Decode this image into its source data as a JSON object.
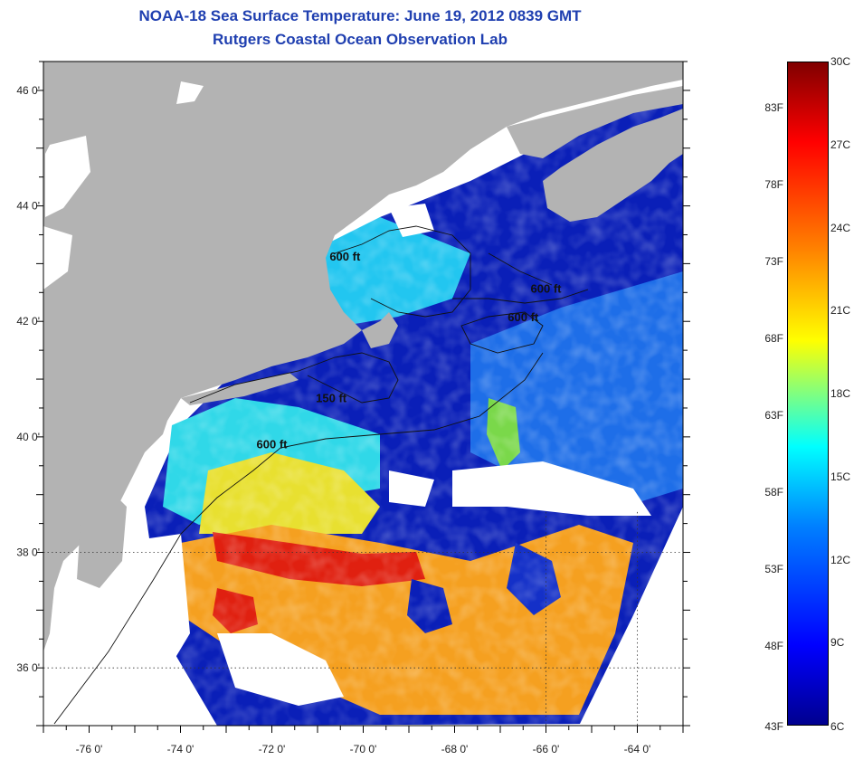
{
  "header": {
    "title": "NOAA-18 Sea Surface Temperature:  June 19, 2012 0839 GMT",
    "subtitle": "Rutgers Coastal Ocean Observation Lab"
  },
  "map": {
    "lat_range": [
      35,
      46.5
    ],
    "lon_range": [
      -77,
      -63
    ],
    "lat_ticks": [
      "46 0'",
      "44 0'",
      "42 0'",
      "40 0'",
      "38 0'",
      "36 0'"
    ],
    "lat_tick_values": [
      46,
      44,
      42,
      40,
      38,
      36
    ],
    "lon_ticks": [
      "-76 0'",
      "-74 0'",
      "-72 0'",
      "-70 0'",
      "-68 0'",
      "-66 0'",
      "-64 0'"
    ],
    "lon_tick_values": [
      -76,
      -74,
      -72,
      -70,
      -68,
      -66,
      -64
    ],
    "contour_labels": [
      {
        "text": "600 ft",
        "lon": -70.4,
        "lat": 43.05
      },
      {
        "text": "600 ft",
        "lon": -66.0,
        "lat": 42.5
      },
      {
        "text": "600 ft",
        "lon": -66.5,
        "lat": 42.0
      },
      {
        "text": "150 ft",
        "lon": -70.7,
        "lat": 40.6
      },
      {
        "text": "600 ft",
        "lon": -72.0,
        "lat": 39.8
      }
    ],
    "colors": {
      "land": "#b3b3b3",
      "cloud": "#ffffff",
      "cold_water": "#0a1fb8",
      "cool_water": "#1e6ee8",
      "mild_water": "#22c6f0",
      "warm_water": "#f0e020",
      "hot_water": "#f5a020",
      "very_hot_water": "#e02010"
    }
  },
  "colorbar": {
    "min_c": 6,
    "max_c": 30,
    "fahrenheit_labels": [
      "83F",
      "78F",
      "73F",
      "68F",
      "63F",
      "58F",
      "53F",
      "48F",
      "43F"
    ],
    "fahrenheit_values": [
      83,
      78,
      73,
      68,
      63,
      58,
      53,
      48,
      43
    ],
    "celsius_labels": [
      "30C",
      "27C",
      "24C",
      "21C",
      "18C",
      "15C",
      "12C",
      "9C",
      "6C"
    ],
    "celsius_values": [
      30,
      27,
      24,
      21,
      18,
      15,
      12,
      9,
      6
    ]
  }
}
